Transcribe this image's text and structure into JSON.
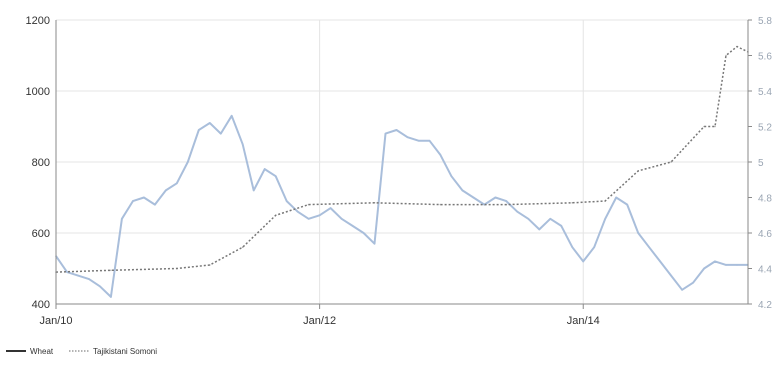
{
  "colors": {
    "wheat": "#a9bedb",
    "somoni": "#777777",
    "grid": "#e4e4e4",
    "axis": "#8a8a8a"
  },
  "chart_data": {
    "type": "line",
    "title": "",
    "xlabel": "",
    "ylabel": "",
    "x_ticks": [
      "Jan/10",
      "Jan/12",
      "Jan/14"
    ],
    "xlim": [
      "2010-01",
      "2015-04"
    ],
    "y_left": {
      "ticks": [
        400,
        600,
        800,
        1000,
        1200
      ],
      "ylim": [
        400,
        1200
      ]
    },
    "y_right": {
      "ticks": [
        "4.2",
        "4.4",
        "4.6",
        "4.8",
        "5",
        "5.2",
        "5.4",
        "5.6",
        "5.8"
      ],
      "ylim": [
        4.2,
        5.8
      ]
    },
    "grid": true,
    "legend_position": "bottom-left",
    "series": [
      {
        "name": "Wheat",
        "axis": "left",
        "style": "solid",
        "points": [
          [
            "2010-01",
            535
          ],
          [
            "2010-02",
            490
          ],
          [
            "2010-03",
            480
          ],
          [
            "2010-04",
            470
          ],
          [
            "2010-05",
            450
          ],
          [
            "2010-06",
            420
          ],
          [
            "2010-07",
            640
          ],
          [
            "2010-08",
            690
          ],
          [
            "2010-09",
            700
          ],
          [
            "2010-10",
            680
          ],
          [
            "2010-11",
            720
          ],
          [
            "2010-12",
            740
          ],
          [
            "2011-01",
            800
          ],
          [
            "2011-02",
            890
          ],
          [
            "2011-03",
            910
          ],
          [
            "2011-04",
            880
          ],
          [
            "2011-05",
            930
          ],
          [
            "2011-06",
            850
          ],
          [
            "2011-07",
            720
          ],
          [
            "2011-08",
            780
          ],
          [
            "2011-09",
            760
          ],
          [
            "2011-10",
            690
          ],
          [
            "2011-11",
            660
          ],
          [
            "2011-12",
            640
          ],
          [
            "2012-01",
            650
          ],
          [
            "2012-02",
            670
          ],
          [
            "2012-03",
            640
          ],
          [
            "2012-04",
            620
          ],
          [
            "2012-05",
            600
          ],
          [
            "2012-06",
            570
          ],
          [
            "2012-07",
            880
          ],
          [
            "2012-08",
            890
          ],
          [
            "2012-09",
            870
          ],
          [
            "2012-10",
            860
          ],
          [
            "2012-11",
            860
          ],
          [
            "2012-12",
            820
          ],
          [
            "2013-01",
            760
          ],
          [
            "2013-02",
            720
          ],
          [
            "2013-03",
            700
          ],
          [
            "2013-04",
            680
          ],
          [
            "2013-05",
            700
          ],
          [
            "2013-06",
            690
          ],
          [
            "2013-07",
            660
          ],
          [
            "2013-08",
            640
          ],
          [
            "2013-09",
            610
          ],
          [
            "2013-10",
            640
          ],
          [
            "2013-11",
            620
          ],
          [
            "2013-12",
            560
          ],
          [
            "2014-01",
            520
          ],
          [
            "2014-02",
            560
          ],
          [
            "2014-03",
            640
          ],
          [
            "2014-04",
            700
          ],
          [
            "2014-05",
            680
          ],
          [
            "2014-06",
            600
          ],
          [
            "2014-07",
            560
          ],
          [
            "2014-08",
            520
          ],
          [
            "2014-09",
            480
          ],
          [
            "2014-10",
            440
          ],
          [
            "2014-11",
            460
          ],
          [
            "2014-12",
            500
          ],
          [
            "2015-01",
            520
          ],
          [
            "2015-02",
            510
          ],
          [
            "2015-03",
            510
          ],
          [
            "2015-04",
            510
          ]
        ]
      },
      {
        "name": "Tajikistani Somoni",
        "axis": "right",
        "style": "dotted",
        "points": [
          [
            "2010-01",
            4.38
          ],
          [
            "2010-06",
            4.39
          ],
          [
            "2010-12",
            4.4
          ],
          [
            "2011-03",
            4.42
          ],
          [
            "2011-06",
            4.52
          ],
          [
            "2011-09",
            4.7
          ],
          [
            "2011-12",
            4.76
          ],
          [
            "2012-06",
            4.77
          ],
          [
            "2012-12",
            4.76
          ],
          [
            "2013-06",
            4.76
          ],
          [
            "2013-12",
            4.77
          ],
          [
            "2014-03",
            4.78
          ],
          [
            "2014-06",
            4.95
          ],
          [
            "2014-09",
            5.0
          ],
          [
            "2014-12",
            5.2
          ],
          [
            "2015-01",
            5.2
          ],
          [
            "2015-02",
            5.6
          ],
          [
            "2015-03",
            5.65
          ],
          [
            "2015-04",
            5.62
          ]
        ]
      }
    ]
  }
}
